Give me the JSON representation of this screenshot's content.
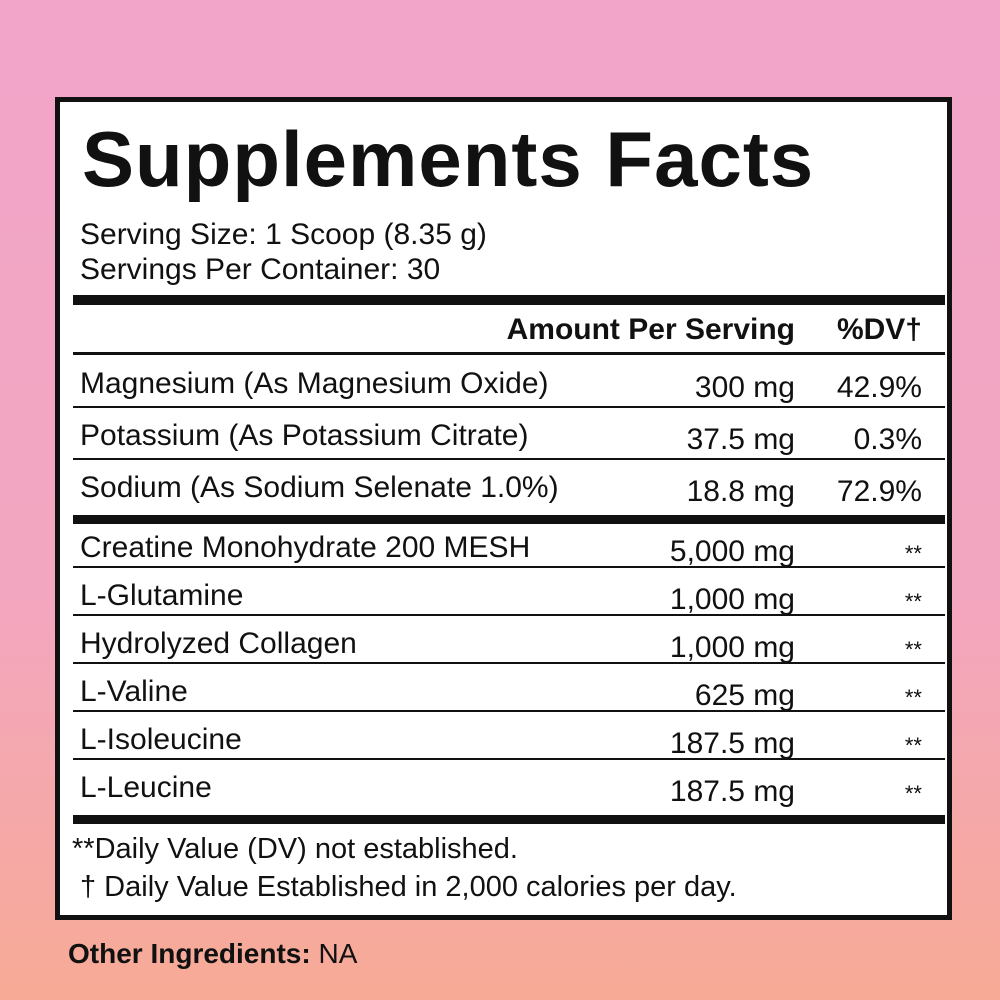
{
  "title": "Supplements Facts",
  "serving_size": "Serving Size: 1 Scoop (8.35 g)",
  "servings_per_container": "Servings Per Container: 30",
  "header": {
    "amount": "Amount Per Serving",
    "dv": "%DV†"
  },
  "nutrients": [
    {
      "name": "Magnesium (As Magnesium Oxide)",
      "amount": "300 mg",
      "dv": "42.9%"
    },
    {
      "name": "Potassium (As Potassium Citrate)",
      "amount": "37.5 mg",
      "dv": "0.3%"
    },
    {
      "name": "Sodium (As Sodium Selenate 1.0%)",
      "amount": "18.8 mg",
      "dv": "72.9%"
    }
  ],
  "ingredients": [
    {
      "name": "Creatine Monohydrate 200 MESH",
      "amount": "5,000 mg",
      "dv": "**"
    },
    {
      "name": "L-Glutamine",
      "amount": "1,000 mg",
      "dv": "**"
    },
    {
      "name": "Hydrolyzed Collagen",
      "amount": "1,000 mg",
      "dv": "**"
    },
    {
      "name": "L-Valine",
      "amount": "625 mg",
      "dv": "**"
    },
    {
      "name": "L-Isoleucine",
      "amount": "187.5 mg",
      "dv": "**"
    },
    {
      "name": "L-Leucine",
      "amount": "187.5 mg",
      "dv": "**"
    }
  ],
  "footnotes": [
    "**Daily Value (DV) not established.",
    "† Daily Value Established in 2,000 calories per day."
  ],
  "other_ingredients": {
    "label": "Other Ingredients:",
    "value": "NA"
  }
}
